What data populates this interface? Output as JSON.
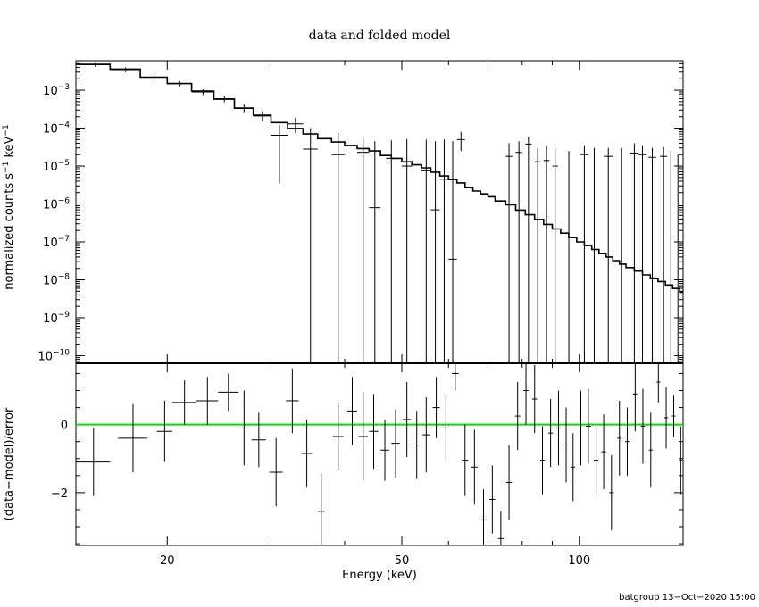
{
  "chart_data": [
    {
      "panel": "top",
      "type": "line",
      "title": "data and folded model",
      "ylabel_parts": [
        "normalized counts s",
        "−1",
        " keV",
        "−1"
      ],
      "xscale": "log",
      "yscale": "log",
      "xlim": [
        14,
        150
      ],
      "ylim": [
        6.3e-11,
        0.006
      ],
      "yticks": [
        {
          "v": 0.001,
          "m": "10",
          "e": "−3"
        },
        {
          "v": 0.0001,
          "m": "10",
          "e": "−4"
        },
        {
          "v": 1e-05,
          "m": "10",
          "e": "−5"
        },
        {
          "v": 1e-06,
          "m": "10",
          "e": "−6"
        },
        {
          "v": 1e-07,
          "m": "10",
          "e": "−7"
        },
        {
          "v": 1e-08,
          "m": "10",
          "e": "−8"
        },
        {
          "v": 1e-09,
          "m": "10",
          "e": "−9"
        },
        {
          "v": 1e-10,
          "m": "10",
          "e": "−10"
        }
      ],
      "model_steps": [
        [
          14,
          0.0048
        ],
        [
          16,
          0.0036
        ],
        [
          18,
          0.0022
        ],
        [
          20,
          0.0015
        ],
        [
          22,
          0.00095
        ],
        [
          24,
          0.00058
        ],
        [
          26,
          0.00034
        ],
        [
          28,
          0.00022
        ],
        [
          30,
          0.00014
        ],
        [
          32,
          9.8e-05
        ],
        [
          34,
          7e-05
        ],
        [
          36,
          5.3e-05
        ],
        [
          38,
          4.3e-05
        ],
        [
          40,
          3.5e-05
        ],
        [
          42,
          2.9e-05
        ],
        [
          44,
          2.5e-05
        ],
        [
          46,
          1.9e-05
        ],
        [
          48,
          1.6e-05
        ],
        [
          50,
          1.3e-05
        ],
        [
          52,
          1.08e-05
        ],
        [
          54,
          9e-06
        ],
        [
          56,
          6.9e-06
        ],
        [
          58,
          5.5e-06
        ],
        [
          60,
          4.4e-06
        ],
        [
          62,
          3.6e-06
        ],
        [
          64,
          2.7e-06
        ],
        [
          66,
          2.2e-06
        ],
        [
          68,
          1.85e-06
        ],
        [
          70,
          1.55e-06
        ],
        [
          72,
          1.2e-06
        ],
        [
          75,
          9.5e-07
        ],
        [
          78,
          6.9e-07
        ],
        [
          81,
          5.2e-07
        ],
        [
          84,
          3.9e-07
        ],
        [
          87,
          2.9e-07
        ],
        [
          90,
          2.2e-07
        ],
        [
          93,
          1.7e-07
        ],
        [
          96,
          1.3e-07
        ],
        [
          99,
          1e-07
        ],
        [
          102,
          8e-08
        ],
        [
          105,
          6.3e-08
        ],
        [
          108,
          5e-08
        ],
        [
          111,
          4e-08
        ],
        [
          114,
          3.2e-08
        ],
        [
          117,
          2.6e-08
        ],
        [
          120,
          2.1e-08
        ],
        [
          124,
          1.7e-08
        ],
        [
          128,
          1.35e-08
        ],
        [
          132,
          1.1e-08
        ],
        [
          136,
          9e-09
        ],
        [
          140,
          7.3e-09
        ],
        [
          144,
          5.9e-09
        ],
        [
          148,
          4.7e-09
        ],
        [
          150,
          4.3e-09
        ]
      ],
      "data_points": [
        {
          "x": 15.1,
          "xl": 14.2,
          "xh": 16.0,
          "y": 0.0047,
          "yl": 0.0042,
          "yh": 0.0052
        },
        {
          "x": 17.0,
          "xl": 16.0,
          "xh": 18.0,
          "y": 0.0035,
          "yl": 0.003,
          "yh": 0.004
        },
        {
          "x": 19.0,
          "xl": 18.0,
          "xh": 20.0,
          "y": 0.0022,
          "yl": 0.0019,
          "yh": 0.0025
        },
        {
          "x": 21.0,
          "xl": 20.0,
          "xh": 22.0,
          "y": 0.0015,
          "yl": 0.00125,
          "yh": 0.00175
        },
        {
          "x": 23.0,
          "xl": 22.0,
          "xh": 24.0,
          "y": 0.0009,
          "yl": 0.00074,
          "yh": 0.00106
        },
        {
          "x": 25.0,
          "xl": 24.0,
          "xh": 26.0,
          "y": 0.0006,
          "yl": 0.00048,
          "yh": 0.00072
        },
        {
          "x": 27.0,
          "xl": 26.0,
          "xh": 28.0,
          "y": 0.00033,
          "yl": 0.00025,
          "yh": 0.00042
        },
        {
          "x": 29.0,
          "xl": 28.0,
          "xh": 30.0,
          "y": 0.00021,
          "yl": 0.00015,
          "yh": 0.00028
        },
        {
          "x": 31.0,
          "xl": 30.0,
          "xh": 32.0,
          "y": 6.5e-05,
          "yl": 3.5e-06,
          "yh": 0.00012
        },
        {
          "x": 33.0,
          "xl": 32.0,
          "xh": 34.0,
          "y": 0.00013,
          "yl": 7.5e-05,
          "yh": 0.00019
        },
        {
          "x": 35.0,
          "xl": 34.0,
          "xh": 36.0,
          "y": 2.8e-05,
          "yl": 6.3e-11,
          "yh": 0.0001
        },
        {
          "x": 39.0,
          "xl": 38.0,
          "xh": 40.0,
          "y": 2e-05,
          "yl": 6.3e-11,
          "yh": 7.5e-05
        },
        {
          "x": 43.0,
          "xl": 42.0,
          "xh": 44.0,
          "y": 2.3e-05,
          "yl": 6.3e-11,
          "yh": 5.5e-05
        },
        {
          "x": 45.0,
          "xl": 44.0,
          "xh": 46.0,
          "y": 8e-07,
          "yl": 6.3e-11,
          "yh": 4.5e-05
        },
        {
          "x": 48.0,
          "xl": 47.0,
          "xh": 49.0,
          "y": 1.6e-05,
          "yl": 6.3e-11,
          "yh": 4.8e-05
        },
        {
          "x": 51.0,
          "xl": 50.0,
          "xh": 52.0,
          "y": 1e-05,
          "yl": 6.3e-11,
          "yh": 5.2e-05
        },
        {
          "x": 55.0,
          "xl": 54.0,
          "xh": 56.0,
          "y": 7.5e-06,
          "yl": 6.3e-11,
          "yh": 5e-05
        },
        {
          "x": 57.0,
          "xl": 56.0,
          "xh": 58.0,
          "y": 7e-07,
          "yl": 6.3e-11,
          "yh": 4.5e-05
        },
        {
          "x": 59.0,
          "xl": 58.0,
          "xh": 60.0,
          "y": 4.5e-06,
          "yl": 6.3e-11,
          "yh": 5e-05
        },
        {
          "x": 61.0,
          "xl": 60.0,
          "xh": 62.0,
          "y": 3.5e-08,
          "yl": 6.3e-11,
          "yh": 4.5e-05
        },
        {
          "x": 63.0,
          "xl": 62.0,
          "xh": 64.0,
          "y": 5e-05,
          "yl": 2.5e-05,
          "yh": 8e-05
        },
        {
          "x": 76.0,
          "xl": 75.0,
          "xh": 77.0,
          "y": 1.8e-05,
          "yl": 6.3e-11,
          "yh": 4e-05
        },
        {
          "x": 79.0,
          "xl": 78.0,
          "xh": 80.0,
          "y": 2.3e-05,
          "yl": 6.3e-11,
          "yh": 4.5e-05
        },
        {
          "x": 82.0,
          "xl": 81.0,
          "xh": 83.0,
          "y": 3.8e-05,
          "yl": 6.3e-11,
          "yh": 6e-05
        },
        {
          "x": 85.0,
          "xl": 84.0,
          "xh": 86.0,
          "y": 1.3e-05,
          "yl": 6.3e-11,
          "yh": 3e-05
        },
        {
          "x": 88.0,
          "xl": 87.0,
          "xh": 89.0,
          "y": 1.4e-05,
          "yl": 6.3e-11,
          "yh": 3.5e-05
        },
        {
          "x": 91.0,
          "xl": 90.0,
          "xh": 92.0,
          "y": 1e-05,
          "yl": 6.3e-11,
          "yh": 3e-05
        },
        {
          "x": 102.0,
          "xl": 100.5,
          "xh": 103.5,
          "y": 2e-05,
          "yl": 6.3e-11,
          "yh": 3.5e-05
        },
        {
          "x": 112.0,
          "xl": 110.0,
          "xh": 114.0,
          "y": 1.8e-05,
          "yl": 6.3e-11,
          "yh": 3e-05
        },
        {
          "x": 124.0,
          "xl": 122.0,
          "xh": 126.0,
          "y": 2.2e-05,
          "yl": 6.3e-11,
          "yh": 4e-05
        },
        {
          "x": 128.0,
          "xl": 126.0,
          "xh": 130.0,
          "y": 2e-05,
          "yl": 6.3e-11,
          "yh": 3.5e-05
        },
        {
          "x": 133.0,
          "xl": 131.0,
          "xh": 135.0,
          "y": 1.7e-05,
          "yl": 6.3e-11,
          "yh": 3e-05
        },
        {
          "x": 139.0,
          "xl": 137.0,
          "xh": 141.0,
          "y": 1.8e-05,
          "yl": 6.3e-11,
          "yh": 3.2e-05
        }
      ],
      "upper_limits": [
        {
          "x": 96,
          "yh": 2.5e-05
        },
        {
          "x": 106,
          "yh": 3e-05
        },
        {
          "x": 118,
          "yh": 3e-05
        },
        {
          "x": 143,
          "yh": 2.5e-05
        },
        {
          "x": 147,
          "yh": 2e-05
        }
      ]
    },
    {
      "panel": "bottom",
      "type": "scatter",
      "xlabel": "Energy (keV)",
      "ylabel": "(data−model)/error",
      "xscale": "log",
      "xlim": [
        14,
        150
      ],
      "ylim": [
        -3.55,
        1.8
      ],
      "xticks": [
        {
          "v": 20,
          "label": "20"
        },
        {
          "v": 50,
          "label": "50"
        },
        {
          "v": 100,
          "label": "100"
        }
      ],
      "yticks": [
        {
          "v": 0,
          "label": "0"
        },
        {
          "v": -2,
          "label": "−2"
        }
      ],
      "zero_line_color": "#00e000",
      "residuals": [
        {
          "x": 15.0,
          "xl": 14.0,
          "xh": 16.0,
          "y": -1.1,
          "e": 1.0
        },
        {
          "x": 17.5,
          "xl": 16.5,
          "xh": 18.5,
          "y": -0.4,
          "e": 1.0
        },
        {
          "x": 19.8,
          "xl": 19.2,
          "xh": 20.4,
          "y": -0.2,
          "e": 0.9
        },
        {
          "x": 21.4,
          "xl": 20.4,
          "xh": 22.4,
          "y": 0.65,
          "e": 0.65
        },
        {
          "x": 23.4,
          "xl": 22.4,
          "xh": 24.4,
          "y": 0.7,
          "e": 0.7
        },
        {
          "x": 25.4,
          "xl": 24.4,
          "xh": 26.4,
          "y": 0.95,
          "e": 0.55
        },
        {
          "x": 27.0,
          "xl": 26.4,
          "xh": 27.6,
          "y": -0.1,
          "e": 1.1
        },
        {
          "x": 28.6,
          "xl": 27.8,
          "xh": 29.4,
          "y": -0.45,
          "e": 0.8
        },
        {
          "x": 30.6,
          "xl": 29.8,
          "xh": 31.4,
          "y": -1.4,
          "e": 1.0
        },
        {
          "x": 32.6,
          "xl": 31.8,
          "xh": 33.4,
          "y": 0.7,
          "e": 0.95
        },
        {
          "x": 34.5,
          "xl": 33.8,
          "xh": 35.2,
          "y": -0.85,
          "e": 1.0
        },
        {
          "x": 36.5,
          "xl": 36.0,
          "xh": 37.0,
          "y": -2.55,
          "e": 1.1
        },
        {
          "x": 39.0,
          "xl": 38.2,
          "xh": 39.8,
          "y": -0.35,
          "e": 1.0
        },
        {
          "x": 41.2,
          "xl": 40.4,
          "xh": 42.0,
          "y": 0.4,
          "e": 1.0
        },
        {
          "x": 43.0,
          "xl": 42.2,
          "xh": 43.8,
          "y": -0.35,
          "e": 1.3
        },
        {
          "x": 44.8,
          "xl": 44.0,
          "xh": 45.6,
          "y": -0.2,
          "e": 1.1
        },
        {
          "x": 46.8,
          "xl": 46.0,
          "xh": 47.6,
          "y": -0.75,
          "e": 0.9
        },
        {
          "x": 48.8,
          "xl": 48.0,
          "xh": 49.6,
          "y": -0.55,
          "e": 1.0
        },
        {
          "x": 51.0,
          "xl": 50.2,
          "xh": 51.8,
          "y": 0.15,
          "e": 1.1
        },
        {
          "x": 53.0,
          "xl": 52.2,
          "xh": 53.8,
          "y": -0.6,
          "e": 1.0
        },
        {
          "x": 55.0,
          "xl": 54.2,
          "xh": 55.8,
          "y": -0.3,
          "e": 1.1
        },
        {
          "x": 57.2,
          "xl": 56.4,
          "xh": 58.0,
          "y": 0.5,
          "e": 0.9
        },
        {
          "x": 59.4,
          "xl": 58.6,
          "xh": 60.2,
          "y": -0.1,
          "e": 1.0
        },
        {
          "x": 61.6,
          "xl": 60.8,
          "xh": 62.4,
          "y": 1.5,
          "e": 0.5
        },
        {
          "x": 64.0,
          "xl": 63.2,
          "xh": 64.8,
          "y": -1.05,
          "e": 1.05
        },
        {
          "x": 66.4,
          "xl": 65.6,
          "xh": 67.2,
          "y": -1.25,
          "e": 1.1
        },
        {
          "x": 68.8,
          "xl": 68.0,
          "xh": 69.6,
          "y": -2.8,
          "e": 0.9
        },
        {
          "x": 71.2,
          "xl": 70.4,
          "xh": 72.0,
          "y": -2.2,
          "e": 1.0
        },
        {
          "x": 73.6,
          "xl": 72.8,
          "xh": 74.4,
          "y": -3.35,
          "e": 0.8
        },
        {
          "x": 76.0,
          "xl": 75.2,
          "xh": 76.8,
          "y": -1.7,
          "e": 1.1
        },
        {
          "x": 78.6,
          "xl": 77.8,
          "xh": 79.4,
          "y": 0.25,
          "e": 1.0
        },
        {
          "x": 81.2,
          "xl": 80.4,
          "xh": 82.0,
          "y": 1.0,
          "e": 1.0
        },
        {
          "x": 84.0,
          "xl": 83.2,
          "xh": 84.8,
          "y": 0.75,
          "e": 1.0
        },
        {
          "x": 86.6,
          "xl": 85.8,
          "xh": 87.4,
          "y": -1.05,
          "e": 1.0
        },
        {
          "x": 89.4,
          "xl": 88.6,
          "xh": 90.2,
          "y": -0.25,
          "e": 1.0
        },
        {
          "x": 92.2,
          "xl": 91.4,
          "xh": 93.0,
          "y": -0.1,
          "e": 1.1
        },
        {
          "x": 95.0,
          "xl": 94.2,
          "xh": 95.8,
          "y": -0.6,
          "e": 1.1
        },
        {
          "x": 97.6,
          "xl": 96.8,
          "xh": 98.4,
          "y": -1.25,
          "e": 1.0
        },
        {
          "x": 100.6,
          "xl": 99.8,
          "xh": 101.4,
          "y": -0.1,
          "e": 1.1
        },
        {
          "x": 103.6,
          "xl": 102.6,
          "xh": 104.6,
          "y": -0.05,
          "e": 1.1
        },
        {
          "x": 106.8,
          "xl": 105.8,
          "xh": 107.8,
          "y": -1.05,
          "e": 1.0
        },
        {
          "x": 110.0,
          "xl": 109.0,
          "xh": 111.0,
          "y": -0.8,
          "e": 1.1
        },
        {
          "x": 113.4,
          "xl": 112.4,
          "xh": 114.4,
          "y": -2.0,
          "e": 1.1
        },
        {
          "x": 117.0,
          "xl": 116.0,
          "xh": 118.0,
          "y": -0.4,
          "e": 1.1
        },
        {
          "x": 120.6,
          "xl": 119.6,
          "xh": 121.6,
          "y": -0.5,
          "e": 1.0
        },
        {
          "x": 124.4,
          "xl": 123.4,
          "xh": 125.4,
          "y": 0.9,
          "e": 1.1
        },
        {
          "x": 128.2,
          "xl": 127.2,
          "xh": 129.2,
          "y": -0.05,
          "e": 1.1
        },
        {
          "x": 132.2,
          "xl": 131.2,
          "xh": 133.2,
          "y": -0.75,
          "e": 1.1
        },
        {
          "x": 136.2,
          "xl": 135.2,
          "xh": 137.2,
          "y": 1.25,
          "e": 0.6
        },
        {
          "x": 140.4,
          "xl": 139.4,
          "xh": 141.4,
          "y": 0.2,
          "e": 0.9
        },
        {
          "x": 144.6,
          "xl": 143.6,
          "xh": 145.6,
          "y": 0.25,
          "e": 0.6
        },
        {
          "x": 148.6,
          "xl": 147.6,
          "xh": 149.6,
          "y": -1.05,
          "e": 1.0
        }
      ]
    }
  ],
  "footer": "batgroup 13−Oct−2020 15:00"
}
